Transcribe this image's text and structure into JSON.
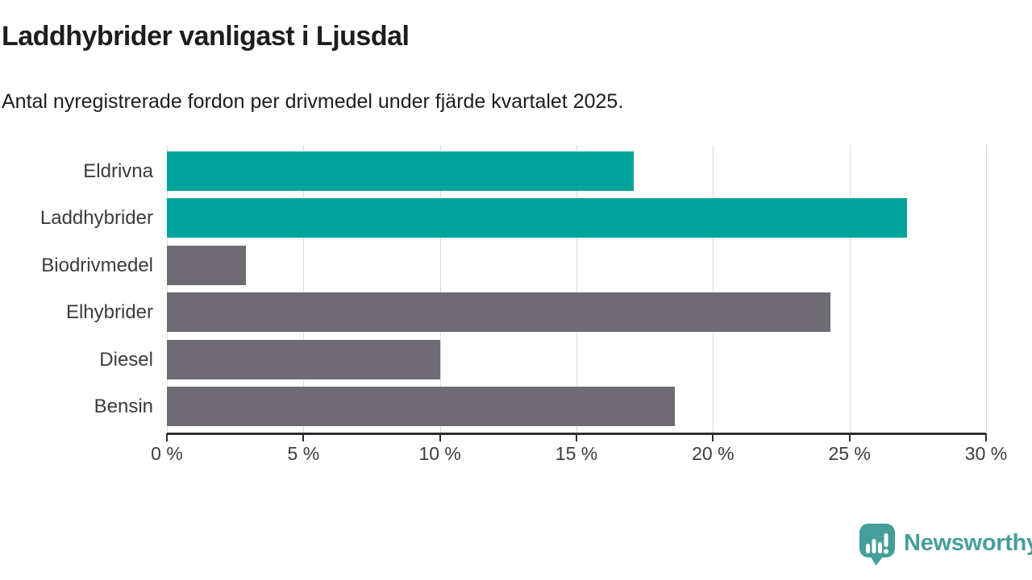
{
  "header": {
    "title": "Laddhybrider vanligast i Ljusdal",
    "subtitle": "Antal nyregistrerade fordon per drivmedel under fjärde kvartalet 2025."
  },
  "chart_data": {
    "type": "bar",
    "orientation": "horizontal",
    "title": "Laddhybrider vanligast i Ljusdal",
    "subtitle": "Antal nyregistrerade fordon per drivmedel under fjärde kvartalet 2025.",
    "categories": [
      "Eldrivna",
      "Laddhybrider",
      "Biodrivmedel",
      "Elhybrider",
      "Diesel",
      "Bensin"
    ],
    "values": [
      17.1,
      27.1,
      2.9,
      24.3,
      10.0,
      18.6
    ],
    "unit": "%",
    "bar_colors": [
      "#00a39a",
      "#00a39a",
      "#6e6b72",
      "#6e6b72",
      "#6e6b72",
      "#6e6b72"
    ],
    "xlabel": "",
    "ylabel": "",
    "xlim": [
      0,
      30
    ],
    "x_ticks": [
      0,
      5,
      10,
      15,
      20,
      25,
      30
    ],
    "x_tick_labels": [
      "0 %",
      "5 %",
      "10 %",
      "15 %",
      "20 %",
      "25 %",
      "30 %"
    ],
    "grid": "vertical-gridlines",
    "legend": "none"
  },
  "colors": {
    "accent_teal": "#00a39a",
    "bar_gray": "#6e6b72",
    "gridline": "#dadada",
    "axis": "#2f2f2f",
    "text_dark": "#1d1d1b",
    "label_gray": "#3c3c3c",
    "logo_teal": "#459e99"
  },
  "footer": {
    "brand": "Newsworthy",
    "logo_icon": "newsworthy-speech-bubble-bar-chart-icon"
  }
}
